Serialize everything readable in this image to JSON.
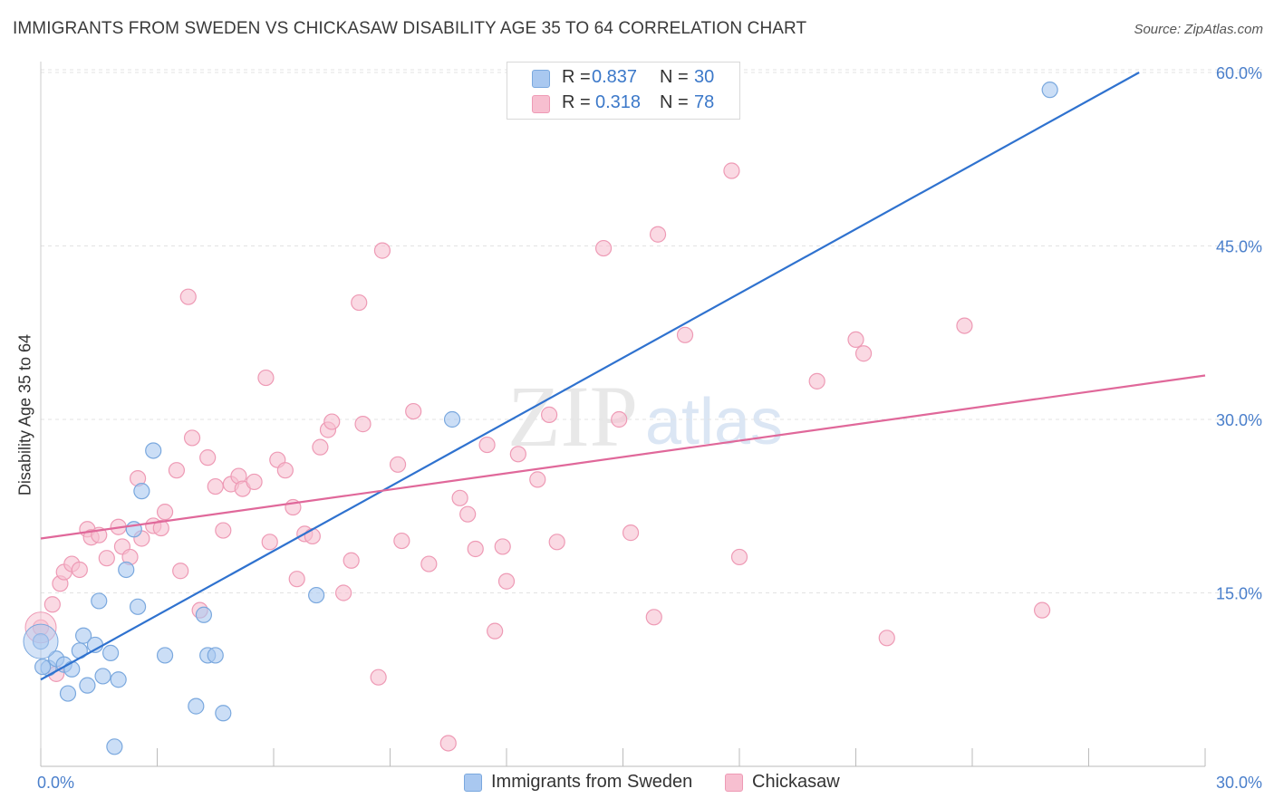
{
  "title": "IMMIGRANTS FROM SWEDEN VS CHICKASAW DISABILITY AGE 35 TO 64 CORRELATION CHART",
  "source": "Source: ZipAtlas.com",
  "watermark": {
    "zip": "ZIP",
    "atlas": "atlas"
  },
  "legend": {
    "rows": [
      {
        "r_label": "R =",
        "r_value": "0.837",
        "n_label": "N =",
        "n_value": "30",
        "color": "#a9c8f0"
      },
      {
        "r_label": "R =",
        "r_value": "0.318",
        "n_label": "N =",
        "n_value": "78",
        "color": "#f5b8cb"
      }
    ]
  },
  "colors": {
    "sweden_fill": "#a9c8f0",
    "sweden_stroke": "#7aa8de",
    "sweden_line": "#2f72cf",
    "chickasaw_fill": "#f7bfd0",
    "chickasaw_stroke": "#ee9ab5",
    "chickasaw_line": "#e0689a",
    "tick_label": "#4a7fcb",
    "grid": "#e3e3e3"
  },
  "chart_data": {
    "type": "scatter",
    "title": "IMMIGRANTS FROM SWEDEN VS CHICKASAW DISABILITY AGE 35 TO 64 CORRELATION CHART",
    "xlabel": "",
    "ylabel": "Disability Age 35 to 64",
    "xlim": [
      0,
      30
    ],
    "ylim": [
      0,
      60
    ],
    "x_tick_labels": [
      {
        "value": 0,
        "label": "0.0%"
      },
      {
        "value": 30,
        "label": "30.0%"
      }
    ],
    "y_tick_labels": [
      {
        "value": 15,
        "label": "15.0%"
      },
      {
        "value": 30,
        "label": "30.0%"
      },
      {
        "value": 45,
        "label": "45.0%"
      },
      {
        "value": 60,
        "label": "60.0%"
      }
    ],
    "grid": true,
    "legend_position": "top-center",
    "series": [
      {
        "name": "Immigrants from Sweden",
        "r": 0.837,
        "n": 30,
        "points": [
          [
            0.0,
            10.8
          ],
          [
            0.2,
            8.5
          ],
          [
            0.4,
            9.3
          ],
          [
            0.6,
            8.8
          ],
          [
            0.7,
            6.3
          ],
          [
            0.8,
            8.4
          ],
          [
            1.0,
            10.0
          ],
          [
            1.1,
            11.3
          ],
          [
            1.2,
            7.0
          ],
          [
            1.4,
            10.5
          ],
          [
            1.5,
            14.3
          ],
          [
            1.6,
            7.8
          ],
          [
            1.8,
            9.8
          ],
          [
            1.9,
            1.7
          ],
          [
            2.0,
            7.5
          ],
          [
            2.2,
            17.0
          ],
          [
            2.4,
            20.5
          ],
          [
            2.5,
            13.8
          ],
          [
            2.6,
            23.8
          ],
          [
            2.9,
            27.3
          ],
          [
            3.2,
            9.6
          ],
          [
            4.0,
            5.2
          ],
          [
            4.2,
            13.1
          ],
          [
            4.3,
            9.6
          ],
          [
            4.5,
            9.6
          ],
          [
            4.7,
            4.6
          ],
          [
            7.1,
            14.8
          ],
          [
            10.6,
            30.0
          ],
          [
            26.0,
            58.5
          ],
          [
            0.05,
            8.6
          ]
        ]
      },
      {
        "name": "Chickasaw",
        "r": 0.318,
        "n": 78,
        "points": [
          [
            0.0,
            12.0
          ],
          [
            0.3,
            14.0
          ],
          [
            0.5,
            15.8
          ],
          [
            0.6,
            16.8
          ],
          [
            0.8,
            17.5
          ],
          [
            1.0,
            17.0
          ],
          [
            1.2,
            20.5
          ],
          [
            1.3,
            19.8
          ],
          [
            1.5,
            20.0
          ],
          [
            1.7,
            18.0
          ],
          [
            2.0,
            20.7
          ],
          [
            2.1,
            19.0
          ],
          [
            2.3,
            18.1
          ],
          [
            2.5,
            24.9
          ],
          [
            2.6,
            19.7
          ],
          [
            2.9,
            20.8
          ],
          [
            3.1,
            20.6
          ],
          [
            3.2,
            22.0
          ],
          [
            3.5,
            25.6
          ],
          [
            3.6,
            16.9
          ],
          [
            3.8,
            40.6
          ],
          [
            3.9,
            28.4
          ],
          [
            4.1,
            13.5
          ],
          [
            4.3,
            26.7
          ],
          [
            4.5,
            24.2
          ],
          [
            4.7,
            20.4
          ],
          [
            4.9,
            24.4
          ],
          [
            5.1,
            25.1
          ],
          [
            5.2,
            24.0
          ],
          [
            5.5,
            24.6
          ],
          [
            5.8,
            33.6
          ],
          [
            5.9,
            19.4
          ],
          [
            6.1,
            26.5
          ],
          [
            6.3,
            25.6
          ],
          [
            6.5,
            22.4
          ],
          [
            6.6,
            16.2
          ],
          [
            6.8,
            20.1
          ],
          [
            7.0,
            19.9
          ],
          [
            7.2,
            27.6
          ],
          [
            7.4,
            29.1
          ],
          [
            7.5,
            29.8
          ],
          [
            7.8,
            15.0
          ],
          [
            8.0,
            17.8
          ],
          [
            8.2,
            40.1
          ],
          [
            8.3,
            29.6
          ],
          [
            8.7,
            7.7
          ],
          [
            8.8,
            44.6
          ],
          [
            9.2,
            26.1
          ],
          [
            9.3,
            19.5
          ],
          [
            9.6,
            30.7
          ],
          [
            10.0,
            17.5
          ],
          [
            10.5,
            2.0
          ],
          [
            10.8,
            23.2
          ],
          [
            11.0,
            21.8
          ],
          [
            11.2,
            18.8
          ],
          [
            11.5,
            27.8
          ],
          [
            11.7,
            11.7
          ],
          [
            11.9,
            19.0
          ],
          [
            12.0,
            16.0
          ],
          [
            12.3,
            27.0
          ],
          [
            12.8,
            24.8
          ],
          [
            13.1,
            30.4
          ],
          [
            13.3,
            19.4
          ],
          [
            14.5,
            44.8
          ],
          [
            14.9,
            30.0
          ],
          [
            15.2,
            20.2
          ],
          [
            15.8,
            12.9
          ],
          [
            15.9,
            46.0
          ],
          [
            16.6,
            37.3
          ],
          [
            17.8,
            51.5
          ],
          [
            18.0,
            18.1
          ],
          [
            20.0,
            33.3
          ],
          [
            21.0,
            36.9
          ],
          [
            21.2,
            35.7
          ],
          [
            21.8,
            11.1
          ],
          [
            23.8,
            38.1
          ],
          [
            25.8,
            13.5
          ],
          [
            0.4,
            8.0
          ]
        ]
      }
    ],
    "trendlines": [
      {
        "series": "Immigrants from Sweden",
        "x": [
          0,
          28.3
        ],
        "y": [
          7.5,
          60.0
        ]
      },
      {
        "series": "Chickasaw",
        "x": [
          0,
          30
        ],
        "y": [
          19.7,
          33.8
        ]
      }
    ]
  },
  "bottom_legend": [
    {
      "label": "Immigrants from Sweden"
    },
    {
      "label": "Chickasaw"
    }
  ]
}
